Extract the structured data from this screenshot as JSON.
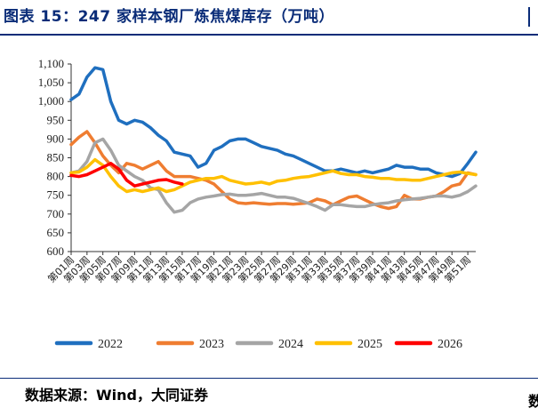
{
  "header": {
    "title": "图表 15：247 家样本钢厂炼焦煤库存（万吨）"
  },
  "footer": {
    "source": "数据来源：Wind，大同证券",
    "edge_char": "数"
  },
  "chart_data": {
    "type": "line",
    "title": "图表 15：247 家样本钢厂炼焦煤库存（万吨）",
    "ylabel": "",
    "xlabel": "",
    "ylim": [
      600,
      1100
    ],
    "yticks": [
      "1,100",
      "1,050",
      "1,000",
      "950",
      "900",
      "850",
      "800",
      "750",
      "700",
      "650",
      "600"
    ],
    "grid": false,
    "legend_position": "bottom",
    "x_tick_labels": [
      "第01周",
      "第03周",
      "第05周",
      "第07周",
      "第09周",
      "第11周",
      "第13周",
      "第15周",
      "第17周",
      "第19周",
      "第21周",
      "第23周",
      "第25周",
      "第27周",
      "第29周",
      "第31周",
      "第33周",
      "第35周",
      "第37周",
      "第39周",
      "第41周",
      "第43周",
      "第45周",
      "第47周",
      "第49周",
      "第51周"
    ],
    "weeks": 52,
    "series": [
      {
        "name": "2022",
        "color": "#1f6fbf",
        "values": [
          1005,
          1020,
          1065,
          1090,
          1085,
          1000,
          950,
          940,
          950,
          945,
          930,
          910,
          895,
          865,
          860,
          855,
          825,
          835,
          870,
          880,
          895,
          900,
          900,
          890,
          880,
          875,
          870,
          860,
          855,
          845,
          835,
          825,
          815,
          815,
          820,
          815,
          810,
          815,
          810,
          815,
          820,
          830,
          825,
          825,
          820,
          820,
          810,
          805,
          800,
          808,
          835,
          865
        ]
      },
      {
        "name": "2023",
        "color": "#ef7d31",
        "values": [
          885,
          905,
          920,
          890,
          855,
          830,
          810,
          835,
          830,
          820,
          830,
          840,
          815,
          800,
          800,
          800,
          795,
          790,
          780,
          760,
          740,
          730,
          728,
          730,
          728,
          726,
          728,
          728,
          726,
          728,
          730,
          740,
          735,
          725,
          735,
          745,
          748,
          738,
          728,
          720,
          715,
          720,
          750,
          740,
          740,
          745,
          748,
          760,
          775,
          780,
          810,
          805
        ]
      },
      {
        "name": "2024",
        "color": "#a5a5a5",
        "values": [
          810,
          815,
          840,
          890,
          900,
          870,
          830,
          815,
          800,
          790,
          770,
          765,
          730,
          705,
          710,
          730,
          740,
          745,
          748,
          752,
          753,
          750,
          750,
          752,
          755,
          750,
          745,
          745,
          742,
          735,
          728,
          720,
          710,
          725,
          725,
          722,
          720,
          720,
          725,
          728,
          730,
          735,
          738,
          740,
          742,
          745,
          748,
          748,
          745,
          750,
          760,
          775
        ]
      },
      {
        "name": "2025",
        "color": "#ffc000",
        "values": [
          810,
          812,
          825,
          845,
          830,
          800,
          775,
          760,
          765,
          760,
          765,
          770,
          760,
          765,
          775,
          785,
          790,
          795,
          795,
          800,
          790,
          785,
          780,
          782,
          785,
          780,
          788,
          790,
          795,
          798,
          800,
          805,
          810,
          815,
          808,
          805,
          805,
          800,
          798,
          795,
          795,
          792,
          792,
          790,
          790,
          795,
          800,
          805,
          810,
          812,
          808,
          805
        ]
      },
      {
        "name": "2026",
        "color": "#ff0000",
        "values": [
          803,
          800,
          805,
          815,
          825,
          835,
          820,
          790,
          775,
          780,
          785,
          790,
          792,
          785,
          780
        ]
      }
    ]
  }
}
